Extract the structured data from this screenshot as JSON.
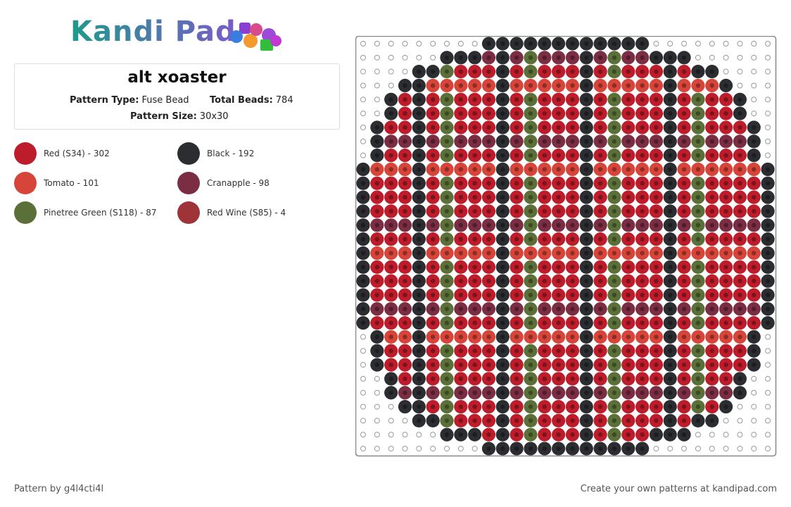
{
  "header": {
    "logo": "Kandi Pad"
  },
  "pattern": {
    "title": "alt xoaster",
    "fields": [
      {
        "label": "Pattern Type:",
        "value": "Fuse Bead"
      },
      {
        "label": "Total Beads:",
        "value": 784
      },
      {
        "label": "Pattern Size:",
        "value": "30x30"
      }
    ]
  },
  "legend": [
    {
      "name": "Red (S34) - 302",
      "color": "#bd1c2b"
    },
    {
      "name": "Black - 192",
      "color": "#2c2d31"
    },
    {
      "name": "Tomato - 101",
      "color": "#d7443a"
    },
    {
      "name": "Cranapple - 98",
      "color": "#7b2d43"
    },
    {
      "name": "Pinetree Green (S118) - 87",
      "color": "#5b7038"
    },
    {
      "name": "Red Wine (S85) - 4",
      "color": "#9e3439"
    }
  ],
  "footer": {
    "credit": "Pattern by g4l4cti4l",
    "promo": "Create your own patterns at kandipad.com"
  }
}
